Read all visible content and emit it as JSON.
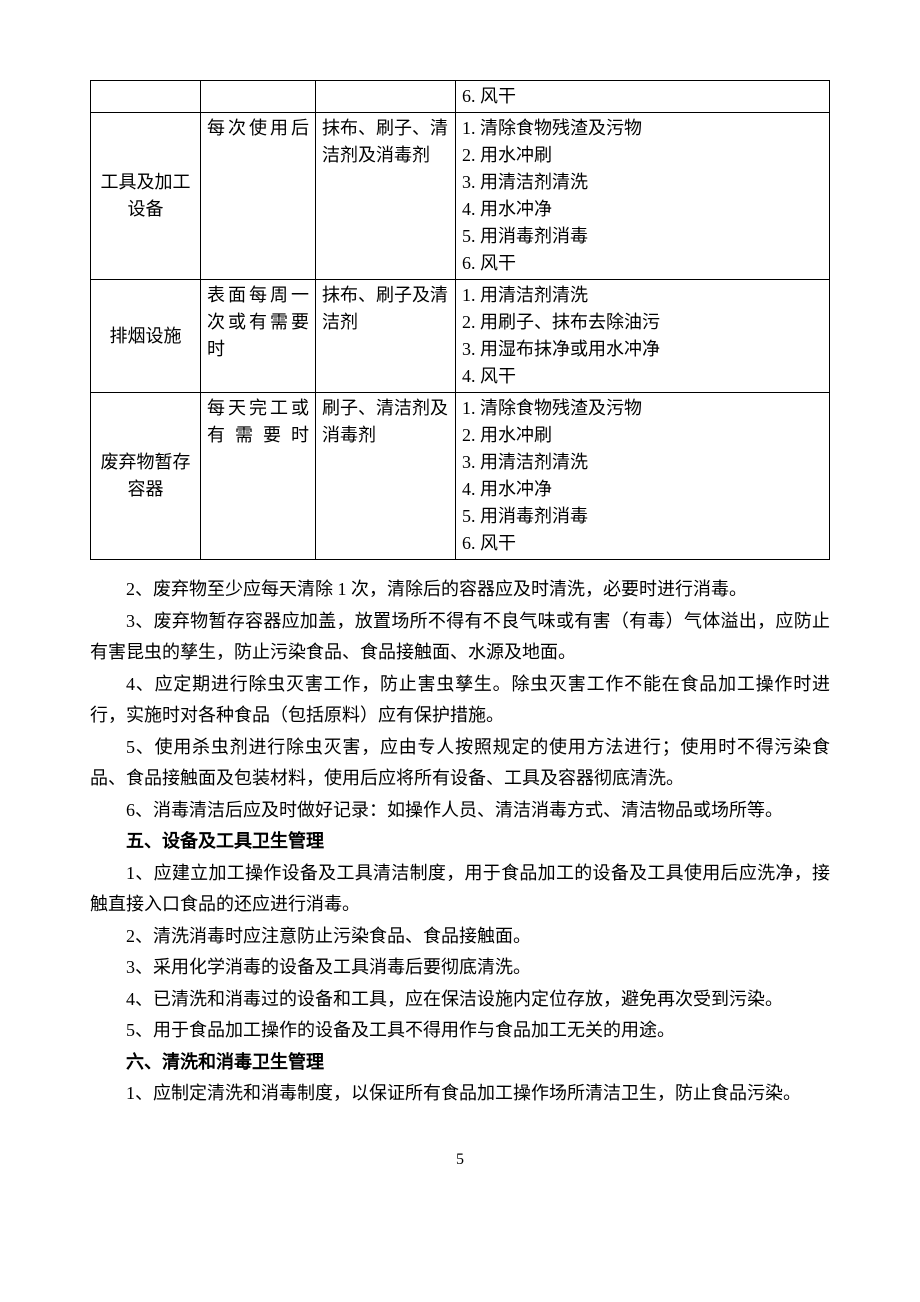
{
  "table": {
    "rows": [
      {
        "item": "",
        "freq": "",
        "tool": "",
        "steps": [
          "6. 风干"
        ]
      },
      {
        "item": "工具及加工设备",
        "freq": "每次使用后",
        "tool": "抹布、刷子、清洁剂及消毒剂",
        "steps": [
          "1. 清除食物残渣及污物",
          "2. 用水冲刷",
          "3. 用清洁剂清洗",
          "4. 用水冲净",
          "5. 用消毒剂消毒",
          "6. 风干"
        ]
      },
      {
        "item": "排烟设施",
        "freq": "表面每周一次或有需要时",
        "tool": "抹布、刷子及清洁剂",
        "steps": [
          "1. 用清洁剂清洗",
          "2. 用刷子、抹布去除油污",
          "3. 用湿布抹净或用水冲净",
          "4. 风干"
        ]
      },
      {
        "item": "废弃物暂存容器",
        "freq": "每天完工或有需要时",
        "tool": "刷子、清洁剂及消毒剂",
        "steps": [
          "1. 清除食物残渣及污物",
          "2. 用水冲刷",
          "3. 用清洁剂清洗",
          "4. 用水冲净",
          "5. 用消毒剂消毒",
          "6. 风干"
        ]
      }
    ]
  },
  "paragraphs": {
    "p2": "2、废弃物至少应每天清除 1 次，清除后的容器应及时清洗，必要时进行消毒。",
    "p3": "3、废弃物暂存容器应加盖，放置场所不得有不良气味或有害（有毒）气体溢出，应防止有害昆虫的孳生，防止污染食品、食品接触面、水源及地面。",
    "p4": "4、应定期进行除虫灭害工作，防止害虫孳生。除虫灭害工作不能在食品加工操作时进行，实施时对各种食品（包括原料）应有保护措施。",
    "p5": "5、使用杀虫剂进行除虫灭害，应由专人按照规定的使用方法进行；使用时不得污染食品、食品接触面及包装材料，使用后应将所有设备、工具及容器彻底清洗。",
    "p6": "6、消毒清洁后应及时做好记录：如操作人员、清洁消毒方式、清洁物品或场所等。",
    "h5": "五、设备及工具卫生管理",
    "p5_1": "1、应建立加工操作设备及工具清洁制度，用于食品加工的设备及工具使用后应洗净，接触直接入口食品的还应进行消毒。",
    "p5_2": "2、清洗消毒时应注意防止污染食品、食品接触面。",
    "p5_3": "3、采用化学消毒的设备及工具消毒后要彻底清洗。",
    "p5_4": "4、已清洗和消毒过的设备和工具，应在保洁设施内定位存放，避免再次受到污染。",
    "p5_5": "5、用于食品加工操作的设备及工具不得用作与食品加工无关的用途。",
    "h6": "六、清洗和消毒卫生管理",
    "p6_1": "1、应制定清洗和消毒制度，以保证所有食品加工操作场所清洁卫生，防止食品污染。"
  },
  "pageNumber": "5"
}
